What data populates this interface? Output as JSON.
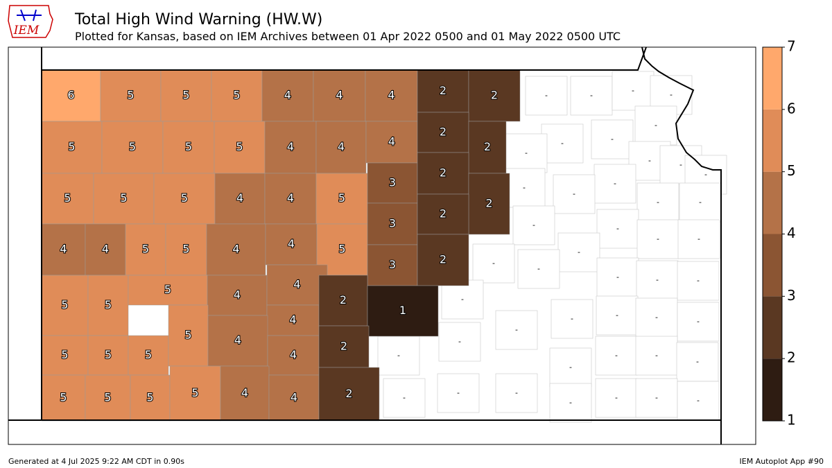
{
  "header": {
    "logo": "IEM",
    "title": "Total High Wind Warning (HW.W)",
    "subtitle": "Plotted for Kansas, based on IEM Archives  between 01 Apr 2022 0500 and 01 May 2022 0500 UTC"
  },
  "colorbar": {
    "ticks": [
      1,
      2,
      3,
      4,
      5,
      6,
      7
    ],
    "colors": [
      "#2e1c12",
      "#5a3822",
      "#8b5533",
      "#b47248",
      "#e08c58",
      "#ffa86c"
    ]
  },
  "counties": [
    {
      "label": "6",
      "value": 6
    },
    {
      "label": "5",
      "value": 5
    },
    {
      "label": "5",
      "value": 5
    },
    {
      "label": "5",
      "value": 5
    },
    {
      "label": "4",
      "value": 4
    },
    {
      "label": "4",
      "value": 4
    },
    {
      "label": "4",
      "value": 4
    },
    {
      "label": "2",
      "value": 2
    },
    {
      "label": "2",
      "value": 2
    },
    {
      "label": "5",
      "value": 5
    },
    {
      "label": "5",
      "value": 5
    },
    {
      "label": "5",
      "value": 5
    },
    {
      "label": "5",
      "value": 5
    },
    {
      "label": "4",
      "value": 4
    },
    {
      "label": "4",
      "value": 4
    },
    {
      "label": "4",
      "value": 4
    },
    {
      "label": "2",
      "value": 2
    },
    {
      "label": "2",
      "value": 2
    },
    {
      "label": "5",
      "value": 5
    },
    {
      "label": "5",
      "value": 5
    },
    {
      "label": "5",
      "value": 5
    },
    {
      "label": "4",
      "value": 4
    },
    {
      "label": "4",
      "value": 4
    },
    {
      "label": "5",
      "value": 5
    },
    {
      "label": "3",
      "value": 3
    },
    {
      "label": "2",
      "value": 2
    },
    {
      "label": "2",
      "value": 2
    },
    {
      "label": "4",
      "value": 4
    },
    {
      "label": "4",
      "value": 4
    },
    {
      "label": "5",
      "value": 5
    },
    {
      "label": "5",
      "value": 5
    },
    {
      "label": "4",
      "value": 4
    },
    {
      "label": "4",
      "value": 4
    },
    {
      "label": "5",
      "value": 5
    },
    {
      "label": "3",
      "value": 3
    },
    {
      "label": "2",
      "value": 2
    },
    {
      "label": "3",
      "value": 3
    },
    {
      "label": "2",
      "value": 2
    },
    {
      "label": "5",
      "value": 5
    },
    {
      "label": "5",
      "value": 5
    },
    {
      "label": "5",
      "value": 5
    },
    {
      "label": "4",
      "value": 4
    },
    {
      "label": "4",
      "value": 4
    },
    {
      "label": "4",
      "value": 4
    },
    {
      "label": "2",
      "value": 2
    },
    {
      "label": "1",
      "value": 1
    },
    {
      "label": "5",
      "value": 5
    },
    {
      "label": "5",
      "value": 5
    },
    {
      "label": "5",
      "value": 5
    },
    {
      "label": "5",
      "value": 5
    },
    {
      "label": "4",
      "value": 4
    },
    {
      "label": "4",
      "value": 4
    },
    {
      "label": "2",
      "value": 2
    },
    {
      "label": "5",
      "value": 5
    },
    {
      "label": "5",
      "value": 5
    },
    {
      "label": "5",
      "value": 5
    },
    {
      "label": "5",
      "value": 5
    },
    {
      "label": "4",
      "value": 4
    },
    {
      "label": "4",
      "value": 4
    },
    {
      "label": "2",
      "value": 2
    }
  ],
  "empty_counties": [
    "-",
    "-",
    "-",
    "-",
    "-",
    "-",
    "-",
    "-",
    "-",
    "-",
    "-",
    "-",
    "-",
    "-",
    "-",
    "-",
    "-",
    "-",
    "-",
    "-",
    "-",
    "-",
    "-",
    "-",
    "-",
    "-",
    "-",
    "-",
    "-",
    "-",
    "-",
    "-",
    "-",
    "-",
    "-",
    "-",
    "-",
    "-",
    "-",
    "-",
    "-",
    "-",
    "-",
    "-",
    "-"
  ],
  "footer": {
    "left": "Generated at 4 Jul 2025 9:22 AM CDT in 0.90s",
    "right": "IEM Autoplot App #90"
  }
}
